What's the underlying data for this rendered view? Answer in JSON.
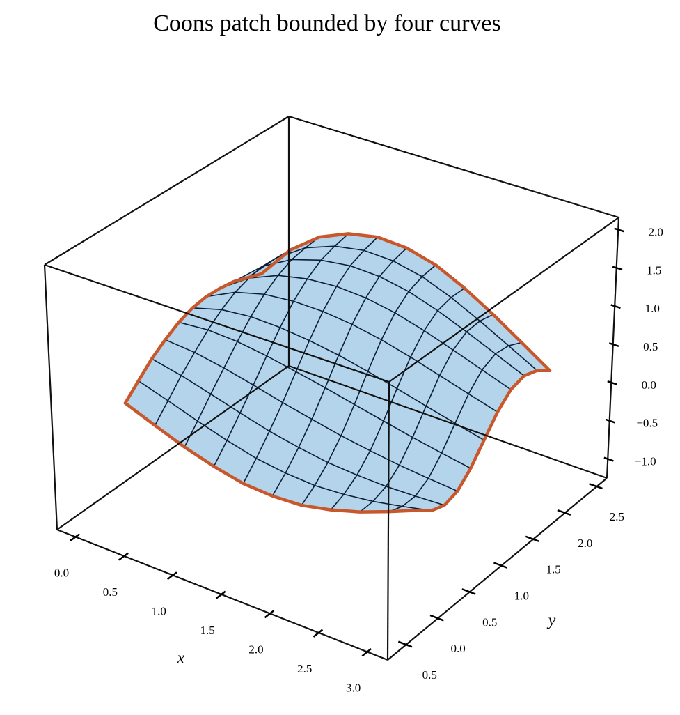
{
  "chart_data": {
    "type": "surface",
    "title": "Coons patch bounded by four curves",
    "xlabel": "x",
    "ylabel": "y",
    "xlim": [
      -0.19,
      3.21
    ],
    "ylim": [
      -0.79,
      2.66
    ],
    "zlim": [
      -1.25,
      2.16
    ],
    "xticks": [
      {
        "value": 0,
        "label": "0.0"
      },
      0.5,
      {
        "value": 1,
        "label": "1.0"
      },
      1.5,
      {
        "value": 2,
        "label": "2.0"
      },
      2.5,
      {
        "value": 3,
        "label": "3.0"
      }
    ],
    "yticks": [
      {
        "value": -0.5,
        "label": "−0.5"
      },
      {
        "value": 0,
        "label": "0.0"
      },
      0.5,
      {
        "value": 1,
        "label": "1.0"
      },
      1.5,
      {
        "value": 2,
        "label": "2.0"
      },
      2.5
    ],
    "zticks": [
      {
        "value": -1,
        "label": "−1.0"
      },
      {
        "value": -0.5,
        "label": "−0.5"
      },
      {
        "value": 0,
        "label": "0.0"
      },
      0.5,
      {
        "value": 1,
        "label": "1.0"
      },
      1.5,
      {
        "value": 2,
        "label": "2.0"
      }
    ],
    "surface_color": "#b3d4ea",
    "mesh_color": "#0b1e36",
    "curve_color": "#c8582b",
    "curves": [
      {
        "x": [
          0,
          0.3,
          0.6,
          0.9,
          1.2,
          1.5,
          1.8,
          2.1,
          2.4,
          2.7,
          3
        ],
        "y": [
          0,
          0,
          0,
          0,
          0,
          0,
          0,
          0,
          0,
          0,
          0
        ],
        "z": [
          0,
          -0.15,
          -0.29,
          -0.4,
          -0.48,
          -0.5,
          -0.48,
          -0.4,
          -0.29,
          -0.15,
          0
        ]
      },
      {
        "x": [
          0,
          0.3,
          0.6,
          0.9,
          1.2,
          1.5,
          1.8,
          2.1,
          2.4,
          2.7,
          3
        ],
        "y": [
          2,
          2,
          2,
          2,
          2,
          2,
          2,
          2,
          2,
          2,
          2
        ],
        "z": [
          0.5,
          0.95,
          1.25,
          1.42,
          1.5,
          1.48,
          1.38,
          1.2,
          0.98,
          0.74,
          0.5
        ]
      },
      {
        "x": [
          0,
          0,
          0,
          0,
          0,
          0,
          0,
          0,
          0,
          0,
          0
        ],
        "y": [
          0,
          0.2,
          0.4,
          0.6,
          0.8,
          1,
          1.2,
          1.4,
          1.6,
          1.8,
          2
        ],
        "z": [
          0,
          0.17,
          0.34,
          0.47,
          0.58,
          0.65,
          0.68,
          0.67,
          0.64,
          0.57,
          0.5
        ]
      },
      {
        "x": [
          3,
          3,
          3,
          3,
          3,
          3,
          3,
          3,
          3,
          3,
          3
        ],
        "y": [
          0,
          0.2,
          0.4,
          0.6,
          0.8,
          1,
          1.2,
          1.4,
          1.6,
          1.8,
          2
        ],
        "z": [
          0,
          -0.13,
          -0.19,
          -0.14,
          0.02,
          0.25,
          0.48,
          0.64,
          0.69,
          0.63,
          0.5
        ]
      }
    ]
  }
}
